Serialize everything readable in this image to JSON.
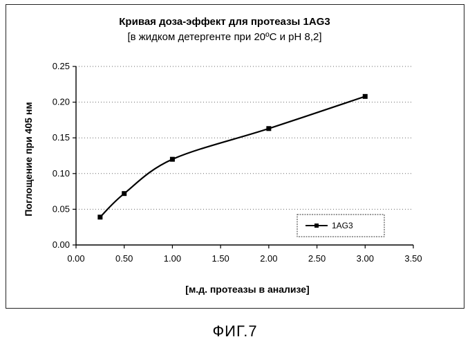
{
  "chart_data": {
    "type": "line",
    "title": "Кривая доза-эффект для протеазы 1AG3",
    "subtitle": "[в жидком детергенте при 20ºC и pH 8,2]",
    "xlabel": "[м.д. протеазы в анализе]",
    "ylabel": "Поглощение при 405 нм",
    "xlim": [
      0,
      3.5
    ],
    "ylim": [
      0,
      0.25
    ],
    "x_ticks": [
      "0.00",
      "0.50",
      "1.00",
      "1.50",
      "2.00",
      "2.50",
      "3.00",
      "3.50"
    ],
    "y_ticks": [
      "0.00",
      "0.05",
      "0.10",
      "0.15",
      "0.20",
      "0.25"
    ],
    "grid": true,
    "legend_position": "bottom-right",
    "series": [
      {
        "name": "1AG3",
        "color": "#000000",
        "x": [
          0.25,
          0.5,
          1.0,
          2.0,
          3.0
        ],
        "y": [
          0.039,
          0.072,
          0.12,
          0.163,
          0.208
        ]
      }
    ]
  },
  "caption": "ФИГ.7"
}
